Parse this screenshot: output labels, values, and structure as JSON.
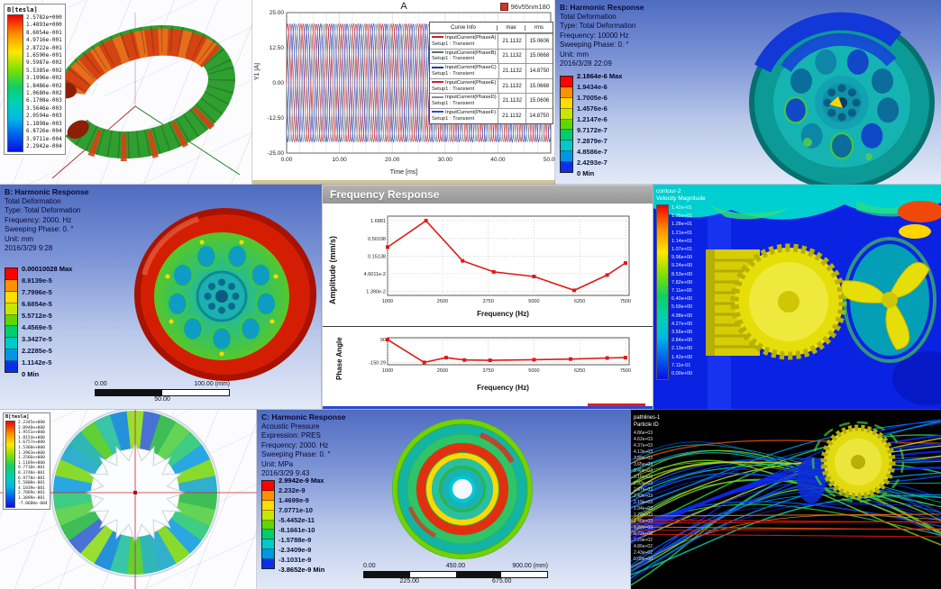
{
  "colors": {
    "ansys_bands": [
      "#ff0000",
      "#ff9100",
      "#ffdd00",
      "#c6e800",
      "#5fd800",
      "#00cc70",
      "#00c9c9",
      "#0096e8",
      "#0b2fe8"
    ],
    "curve_red": "#cc2222",
    "curve_blue": "#2a4fd0"
  },
  "panels": {
    "maxwell_torus": {
      "legend_title": "B[tesla]",
      "legend_values": [
        "2.5782e+000",
        "1.4893e+000",
        "8.6054e-001",
        "4.9716e-001",
        "2.8722e-001",
        "1.6590e-001",
        "9.5987e-002",
        "5.5385e-002",
        "3.1996e-002",
        "1.8486e-002",
        "1.0680e-002",
        "6.1708e-003",
        "3.5646e-003",
        "2.0594e-003",
        "1.1898e-003",
        "6.8726e-004",
        "3.9711e-004",
        "2.2942e-004"
      ]
    },
    "harmonic_10000": {
      "lines": [
        "B: Harmonic Response",
        "Total Deformation",
        "Type: Total Deformation",
        "Frequency: 10000 Hz",
        "Sweeping Phase: 0. °",
        "Unit: mm",
        "2016/3/28 22:09"
      ],
      "legend": [
        "2.1864e-6 Max",
        "1.9434e-6",
        "1.7005e-6",
        "1.4576e-6",
        "1.2147e-6",
        "9.7172e-7",
        "7.2879e-7",
        "4.8586e-7",
        "2.4293e-7",
        "0 Min"
      ]
    },
    "harmonic_2000": {
      "lines": [
        "B: Harmonic Response",
        "Total Deformation",
        "Type: Total Deformation",
        "Frequency: 2000. Hz",
        "Sweeping Phase: 0. °",
        "Unit: mm",
        "2016/3/29 9:28"
      ],
      "legend": [
        "0.00010028 Max",
        "8.9139e-5",
        "7.7996e-5",
        "6.6854e-5",
        "5.5712e-5",
        "4.4569e-5",
        "3.3427e-5",
        "2.2285e-5",
        "1.1142e-5",
        "0 Min"
      ],
      "scale": {
        "left": "0.00",
        "mid": "50.00",
        "right": "100.00 (mm)"
      }
    },
    "freq_response": {
      "window_title": "Frequency Response",
      "amp_ylabel": "Amplitude (mm/s)",
      "phase_ylabel": "Phase Angle",
      "xlabel": "Frequency (Hz)"
    },
    "cfd_velocity": {
      "legend_title1": "contour-2",
      "legend_title2": "Velocity Magnitude",
      "legend_values": [
        "1.42e+01",
        "1.35e+01",
        "1.28e+01",
        "1.21e+01",
        "1.14e+01",
        "1.07e+01",
        "9.96e+00",
        "9.24e+00",
        "8.53e+00",
        "7.82e+00",
        "7.11e+00",
        "6.40e+00",
        "5.69e+00",
        "4.98e+00",
        "4.27e+00",
        "3.56e+00",
        "2.84e+00",
        "2.13e+00",
        "1.42e+00",
        "7.11e-01",
        "0.00e+00"
      ]
    },
    "maxwell_stator": {
      "legend_title": "B[tesla]",
      "legend_values": [
        "2.2345e+000",
        "2.0948e+000",
        "1.9551e+000",
        "1.8154e+000",
        "1.6757e+000",
        "1.5360e+000",
        "1.3963e+000",
        "1.2566e+000",
        "1.1169e+000",
        "9.7718e-001",
        "8.3748e-001",
        "6.9778e-001",
        "5.5808e-001",
        "4.1839e-001",
        "2.7869e-001",
        "1.3899e-001",
        "-7.0680e-004"
      ]
    },
    "acoustic": {
      "lines": [
        "C: Harmonic Response",
        "Acoustic Pressure",
        "Expression: PRES",
        "Frequency: 2000. Hz",
        "Sweeping Phase: 0. °",
        "Unit: MPa",
        "2016/3/29 9:43"
      ],
      "legend": [
        "2.9942e-9 Max",
        "2.232e-9",
        "1.4699e-9",
        "7.0771e-10",
        "-5.4452e-11",
        "-8.1661e-10",
        "-1.5788e-9",
        "-2.3409e-9",
        "-3.1031e-9",
        "-3.8652e-9 Min"
      ],
      "scale": {
        "t1": "0.00",
        "t2": "450.00",
        "t3": "900.00 (mm)",
        "b1": "225.00",
        "b2": "675.00"
      }
    },
    "pathlines": {
      "legend_title1": "pathlines-1",
      "legend_title2": "Particle ID",
      "legend_values": [
        "4.86e+03",
        "4.62e+03",
        "4.37e+03",
        "4.13e+03",
        "3.89e+03",
        "3.65e+03",
        "3.40e+03",
        "3.16e+03",
        "2.92e+03",
        "2.67e+03",
        "2.43e+03",
        "2.19e+03",
        "1.94e+03",
        "1.70e+03",
        "1.46e+03",
        "1.22e+03",
        "9.72e+02",
        "7.29e+02",
        "4.86e+02",
        "2.43e+02",
        "0.00e+00"
      ]
    }
  },
  "chart_data": [
    {
      "id": "input_current",
      "type": "line",
      "title": "A",
      "annotation": "96v55nm180",
      "xlabel": "Time [ms]",
      "ylabel": "Y1 [A]",
      "xlim": [
        0,
        50
      ],
      "ylim": [
        -25,
        25
      ],
      "xticks": [
        "0.00",
        "10.00",
        "20.00",
        "30.00",
        "40.00",
        "50.00"
      ],
      "yticks": [
        "25.00",
        "12.50",
        "0.00",
        "-12.50",
        "-25.00"
      ],
      "amplitude": 21.1132,
      "frequency_hz": 400,
      "table_headers": [
        "Curve Info",
        "max",
        "rms"
      ],
      "series": [
        {
          "name": "InputCurrent(PhaseA)",
          "setup": "Setup1 : Transient",
          "max": "21.1132",
          "rms": "15.0606",
          "color": "#cc2222",
          "phase_deg": 0
        },
        {
          "name": "InputCurrent(PhaseB)",
          "setup": "Setup1 : Transient",
          "max": "21.1132",
          "rms": "15.0668",
          "color": "#666b77",
          "phase_deg": 120
        },
        {
          "name": "InputCurrent(PhaseC)",
          "setup": "Setup1 : Transient",
          "max": "21.1132",
          "rms": "14.8750",
          "color": "#223a9e",
          "phase_deg": 240
        },
        {
          "name": "InputCurrent(PhaseE)",
          "setup": "Setup1 : Transient",
          "max": "21.1132",
          "rms": "15.0668",
          "color": "#cc2233",
          "phase_deg": 60
        },
        {
          "name": "InputCurrent(PhaseD)",
          "setup": "Setup1 : Transient",
          "max": "21.1132",
          "rms": "15.0606",
          "color": "#8a8f9a",
          "phase_deg": 180
        },
        {
          "name": "InputCurrent(PhaseF)",
          "setup": "Setup1 : Transient",
          "max": "21.1132",
          "rms": "14.8750",
          "color": "#2a4fd0",
          "phase_deg": 300
        }
      ]
    },
    {
      "id": "frequency_response_amplitude",
      "type": "line",
      "ylabel": "Amplitude (mm/s)",
      "xlabel": "Frequency (Hz)",
      "yscale": "log",
      "yticks": [
        "1.6881",
        "0.50198",
        "0.15138",
        "4.6011e-2",
        "1.390e-2"
      ],
      "ytick_values": [
        1.6881,
        0.50198,
        0.15138,
        0.046011,
        0.0139
      ],
      "xticks": [
        "1000",
        "2500",
        "3750",
        "5000",
        "6250",
        "7500"
      ],
      "xtick_values": [
        1000,
        2500,
        3750,
        5000,
        6250,
        7500
      ],
      "color": "#e01818",
      "points": [
        [
          1000,
          0.28
        ],
        [
          2050,
          1.6881
        ],
        [
          3050,
          0.11
        ],
        [
          3900,
          0.052
        ],
        [
          5000,
          0.038
        ],
        [
          6100,
          0.0148
        ],
        [
          7000,
          0.042
        ],
        [
          7500,
          0.095
        ]
      ]
    },
    {
      "id": "frequency_response_phase",
      "type": "line",
      "ylabel": "Phase Angle",
      "xlabel": "Frequency (Hz)",
      "yticks": [
        "90",
        "-150.29"
      ],
      "ytick_values": [
        90,
        -150.29
      ],
      "xticks": [
        "1000",
        "2500",
        "3750",
        "5000",
        "6250",
        "7500"
      ],
      "xtick_values": [
        1000,
        2500,
        3750,
        5000,
        6250,
        7500
      ],
      "color": "#e01818",
      "points": [
        [
          1000,
          90
        ],
        [
          2000,
          -150.29
        ],
        [
          2600,
          -100
        ],
        [
          3100,
          -125
        ],
        [
          3800,
          -128
        ],
        [
          5000,
          -122
        ],
        [
          6000,
          -115
        ],
        [
          7000,
          -104
        ],
        [
          7500,
          -100
        ]
      ]
    }
  ]
}
